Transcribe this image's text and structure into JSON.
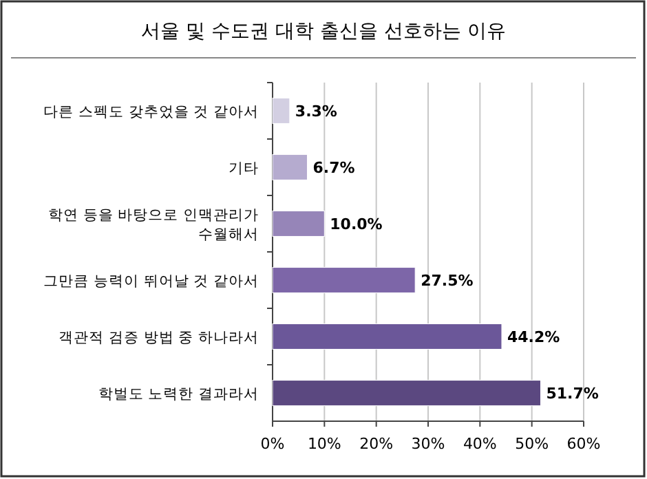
{
  "chart_data": {
    "type": "bar",
    "orientation": "horizontal",
    "title": "서울 및 수도권 대학 출신을 선호하는 이유",
    "categories": [
      "다른 스펙도 갖추었을 것 같아서",
      "기타",
      "학연 등을 바탕으로 인맥관리가 수월해서",
      "그만큼 능력이 뛰어날 것 같아서",
      "객관적 검증 방법 중 하나라서",
      "학벌도 노력한 결과라서"
    ],
    "values": [
      3.3,
      6.7,
      10.0,
      27.5,
      44.2,
      51.7
    ],
    "value_labels": [
      "3.3%",
      "6.7%",
      "10.0%",
      "27.5%",
      "44.2%",
      "51.7%"
    ],
    "colors": [
      "#d3cfe2",
      "#b5abcf",
      "#9685b8",
      "#7d66a8",
      "#6b5799",
      "#5b4880"
    ],
    "xlim": [
      0,
      60
    ],
    "xticks": [
      {
        "value": 0,
        "label": "0%"
      },
      {
        "value": 10,
        "label": "10%"
      },
      {
        "value": 20,
        "label": "20%"
      },
      {
        "value": 30,
        "label": "30%"
      },
      {
        "value": 40,
        "label": "40%"
      },
      {
        "value": 50,
        "label": "50%"
      },
      {
        "value": 60,
        "label": "60%"
      }
    ],
    "grid": "x"
  }
}
